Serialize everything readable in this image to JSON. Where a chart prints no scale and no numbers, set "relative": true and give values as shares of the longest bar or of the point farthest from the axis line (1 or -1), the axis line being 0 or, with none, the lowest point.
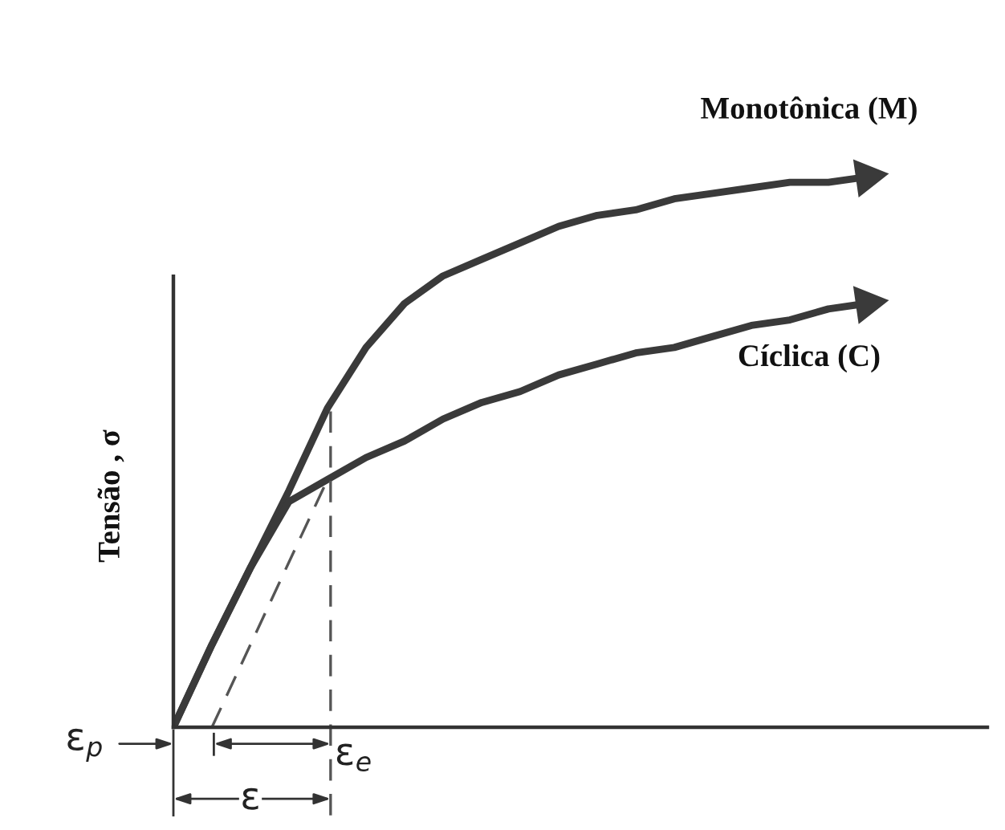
{
  "chart_data": {
    "type": "line",
    "relative": true,
    "ylabel": "Tensão , σ",
    "categories": [
      null,
      null,
      null,
      null,
      null,
      null,
      null,
      null,
      null,
      null,
      null,
      null,
      null,
      null,
      null,
      null,
      null,
      null,
      null
    ],
    "series": [
      {
        "name": "Monotônica (M)",
        "color": "#3a3a3a",
        "values": [
          0,
          0.15,
          0.29,
          0.43,
          0.58,
          0.69,
          0.77,
          0.82,
          0.85,
          0.88,
          0.91,
          0.93,
          0.94,
          0.96,
          0.97,
          0.98,
          0.99,
          0.99,
          1
        ]
      },
      {
        "name": "Cíclica (C)",
        "color": "#3a3a3a",
        "values": [
          0,
          0.15,
          0.29,
          0.41,
          0.45,
          0.49,
          0.52,
          0.56,
          0.59,
          0.61,
          0.64,
          0.66,
          0.68,
          0.69,
          0.71,
          0.73,
          0.74,
          0.76,
          0.77
        ]
      },
      {
        "color": "#555555",
        "line_style": "dashed",
        "values": [
          null,
          0,
          0.15,
          0.3,
          0.45,
          null,
          null,
          null,
          null,
          null,
          null,
          null,
          null,
          null,
          null,
          null,
          null,
          null,
          null
        ]
      }
    ],
    "annotations": [
      "ε$_{p}$",
      "ε$_{e}$",
      "ε"
    ],
    "marker": "none"
  }
}
